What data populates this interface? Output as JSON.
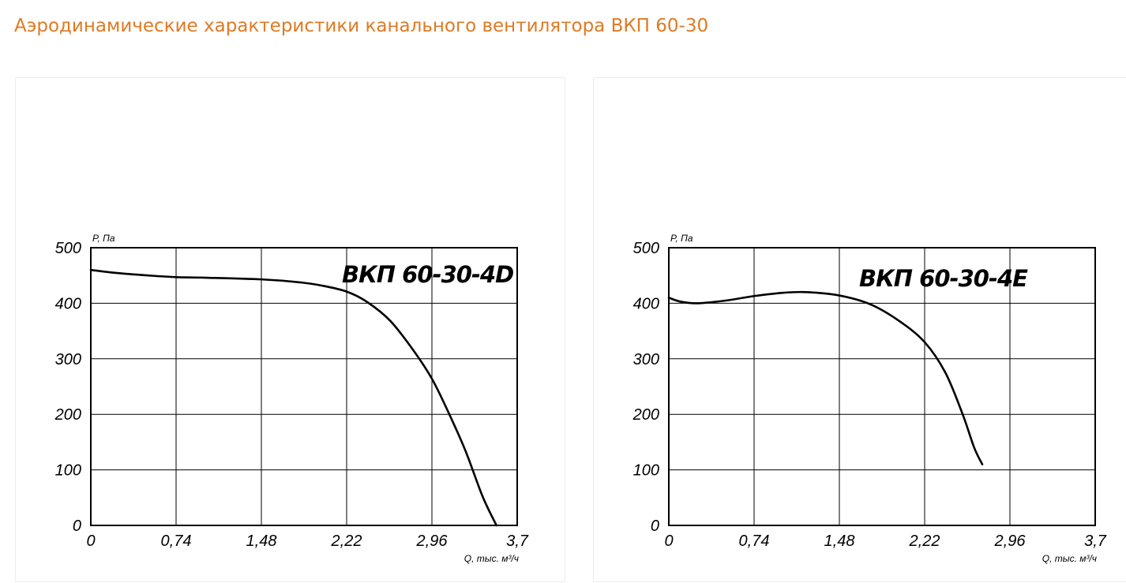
{
  "page": {
    "title": "Аэродинамические характеристики канального вентилятора ВКП 60-30"
  },
  "colors": {
    "title": "#e07a22",
    "curve": "#000000",
    "grid": "#000000"
  },
  "chart_data": [
    {
      "type": "line",
      "title": "ВКП 60-30-4D",
      "xlabel": "Q, тыс. м³/ч",
      "ylabel": "P, Па",
      "xlim": [
        0,
        3.7
      ],
      "ylim": [
        0,
        500
      ],
      "x_ticks": [
        "0",
        "0,74",
        "1,48",
        "2,22",
        "2,96",
        "3,7"
      ],
      "y_ticks": [
        "0",
        "100",
        "200",
        "300",
        "400",
        "500"
      ],
      "x_tick_values": [
        0,
        0.74,
        1.48,
        2.22,
        2.96,
        3.7
      ],
      "y_tick_values": [
        0,
        100,
        200,
        300,
        400,
        500
      ],
      "grid": true,
      "series": [
        {
          "x": [
            0,
            0.2,
            0.5,
            0.74,
            1.0,
            1.48,
            1.8,
            2.0,
            2.22,
            2.4,
            2.6,
            2.8,
            2.96,
            3.1,
            3.25,
            3.4,
            3.52
          ],
          "y": [
            460,
            455,
            450,
            447,
            446,
            443,
            438,
            432,
            421,
            402,
            368,
            315,
            264,
            205,
            135,
            52,
            0
          ]
        }
      ]
    },
    {
      "type": "line",
      "title": "ВКП 60-30-4Е",
      "xlabel": "Q, тыс. м³/ч",
      "ylabel": "P, Па",
      "xlim": [
        0,
        3.7
      ],
      "ylim": [
        0,
        500
      ],
      "x_ticks": [
        "0",
        "0,74",
        "1,48",
        "2,22",
        "2,96",
        "3,7"
      ],
      "y_ticks": [
        "0",
        "100",
        "200",
        "300",
        "400",
        "500"
      ],
      "x_tick_values": [
        0,
        0.74,
        1.48,
        2.22,
        2.96,
        3.7
      ],
      "y_tick_values": [
        0,
        100,
        200,
        300,
        400,
        500
      ],
      "grid": true,
      "series": [
        {
          "x": [
            0,
            0.1,
            0.25,
            0.5,
            0.74,
            1.0,
            1.2,
            1.48,
            1.75,
            2.0,
            2.22,
            2.4,
            2.55,
            2.65,
            2.72
          ],
          "y": [
            410,
            403,
            400,
            405,
            413,
            419,
            420,
            414,
            398,
            368,
            330,
            275,
            200,
            140,
            110
          ]
        }
      ]
    }
  ]
}
